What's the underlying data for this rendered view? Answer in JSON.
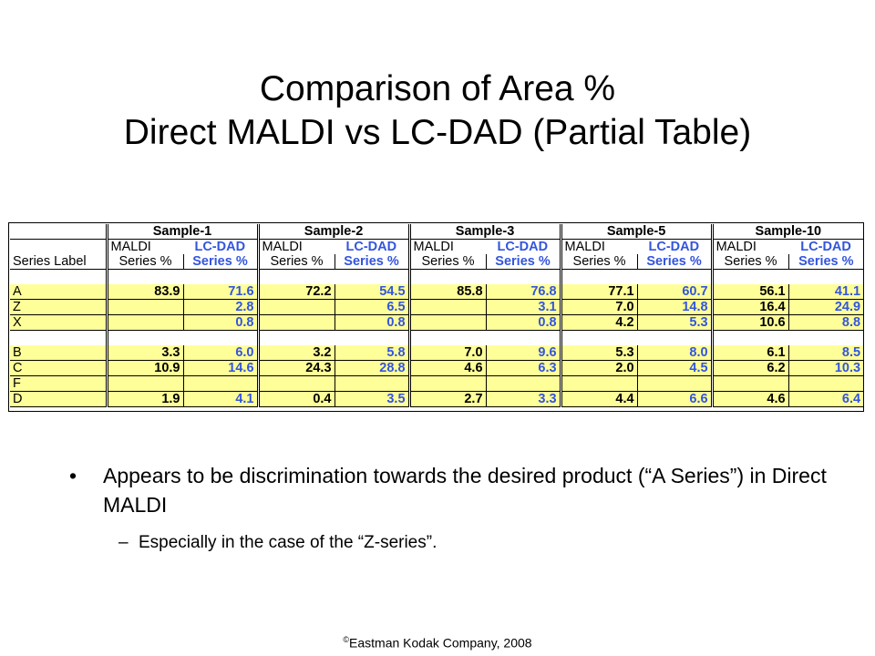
{
  "title": {
    "line1": "Comparison of Area %",
    "line2": "Direct MALDI vs LC-DAD (Partial Table)"
  },
  "table": {
    "samples": [
      "Sample-1",
      "Sample-2",
      "Sample-3",
      "Sample-5",
      "Sample-10"
    ],
    "sub_maldi": "MALDI",
    "sub_lcdad": "LC-DAD",
    "series_label_header": "Series Label",
    "series_pct": "Series %",
    "rows": [
      {
        "label": "A",
        "vals": [
          "83.9",
          "71.6",
          "72.2",
          "54.5",
          "85.8",
          "76.8",
          "77.1",
          "60.7",
          "56.1",
          "41.1"
        ]
      },
      {
        "label": "Z",
        "vals": [
          "",
          "2.8",
          "",
          "6.5",
          "",
          "3.1",
          "7.0",
          "14.8",
          "16.4",
          "24.9"
        ]
      },
      {
        "label": "X",
        "vals": [
          "",
          "0.8",
          "",
          "0.8",
          "",
          "0.8",
          "4.2",
          "5.3",
          "10.6",
          "8.8"
        ]
      },
      {
        "label": "B",
        "vals": [
          "3.3",
          "6.0",
          "3.2",
          "5.8",
          "7.0",
          "9.6",
          "5.3",
          "8.0",
          "6.1",
          "8.5"
        ]
      },
      {
        "label": "C",
        "vals": [
          "10.9",
          "14.6",
          "24.3",
          "28.8",
          "4.6",
          "6.3",
          "2.0",
          "4.5",
          "6.2",
          "10.3"
        ]
      },
      {
        "label": "F",
        "vals": [
          "",
          "",
          "",
          "",
          "",
          "",
          "",
          "",
          "",
          ""
        ]
      },
      {
        "label": "D",
        "vals": [
          "1.9",
          "4.1",
          "0.4",
          "3.5",
          "2.7",
          "3.3",
          "4.4",
          "6.6",
          "4.6",
          "6.4"
        ]
      }
    ]
  },
  "bullets": {
    "main": "Appears to be discrimination towards the desired product (“A Series”) in Direct MALDI",
    "sub": "Especially in the case of the “Z-series”.",
    "bullet_glyph": "•",
    "dash_glyph": "–"
  },
  "footer": {
    "symbol": "©",
    "text": "Eastman Kodak Company, 2008"
  }
}
